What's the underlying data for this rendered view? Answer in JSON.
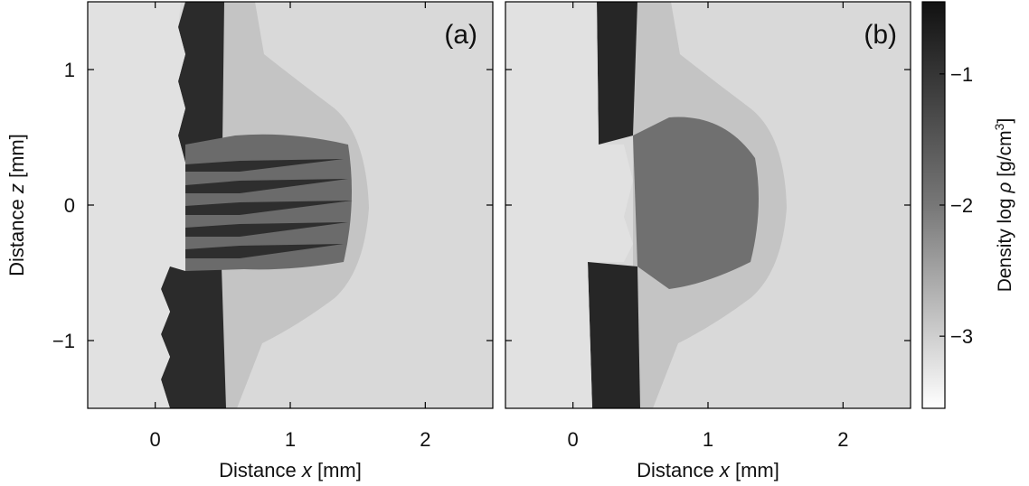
{
  "chart_data": [
    {
      "type": "heatmap",
      "panel_label": "(a)",
      "xlabel": "Distance x [mm]",
      "ylabel": "Distance z [mm]",
      "xlim": [
        -0.5,
        2.5
      ],
      "ylim": [
        -1.5,
        1.5
      ],
      "xticks": [
        "0",
        "1",
        "2"
      ],
      "yticks": [
        "1",
        "0",
        "−1"
      ],
      "quantity": "log density",
      "features": {
        "front_x_top": 0.3,
        "front_x_bottom": 0.2,
        "bubble_center": [
          1.0,
          0.0
        ],
        "bubble_extent_x": [
          0.55,
          1.55
        ],
        "bubble_extent_z": [
          -0.9,
          0.95
        ],
        "spikes": 6
      }
    },
    {
      "type": "heatmap",
      "panel_label": "(b)",
      "xlabel": "Distance x [mm]",
      "ylabel": "",
      "xlim": [
        -0.5,
        2.5
      ],
      "ylim": [
        -1.5,
        1.5
      ],
      "xticks": [
        "0",
        "1",
        "2"
      ],
      "yticks": [],
      "quantity": "log density",
      "features": {
        "front_x_top": 0.2,
        "front_x_bottom": 0.15,
        "bubble_center": [
          1.0,
          0.0
        ],
        "bubble_extent_x": [
          0.55,
          1.55
        ],
        "bubble_extent_z": [
          -0.9,
          0.95
        ],
        "spikes": 0
      }
    }
  ],
  "colorbar": {
    "label_prefix": "Density log",
    "label_symbol": "ρ",
    "label_unit": "[g/cm",
    "label_unit_sup": "3",
    "label_unit_end": "]",
    "range": [
      -3.55,
      -0.45
    ],
    "ticks": [
      "−1",
      "−2",
      "−3"
    ],
    "tick_values": [
      -1,
      -2,
      -3
    ],
    "colors": {
      "high": "#111111",
      "low": "#ffffff"
    }
  },
  "colors": {
    "background_gas": "#d9d9d9",
    "dense_plasma": "#262626",
    "mid_plasma": "#5a5a5a",
    "bubble": "#b5b5b5",
    "bubble_core": "#8c8c8c"
  }
}
